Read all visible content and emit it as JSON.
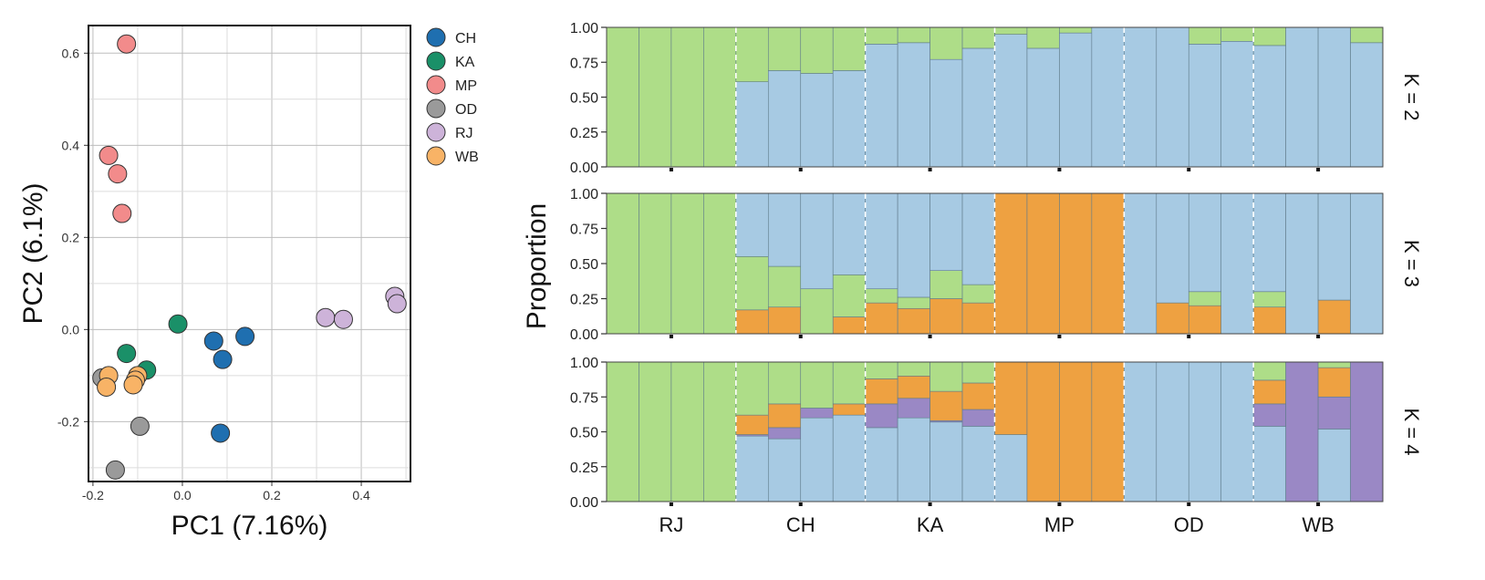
{
  "chart_data": [
    {
      "type": "scatter",
      "xlabel": "PC1 (7.16%)",
      "ylabel": "PC2 (6.1%)",
      "xlim": [
        -0.21,
        0.51
      ],
      "ylim": [
        -0.33,
        0.66
      ],
      "x_ticks": [
        "-0.2",
        "0.0",
        "0.2",
        "0.4"
      ],
      "x_tick_values": [
        -0.2,
        0.0,
        0.2,
        0.4
      ],
      "y_ticks": [
        "-0.2",
        "0.0",
        "0.2",
        "0.4",
        "0.6"
      ],
      "y_tick_values": [
        -0.2,
        0.0,
        0.2,
        0.4,
        0.6
      ],
      "grid": true,
      "legend_position": "outside-right",
      "series": [
        {
          "name": "CH",
          "color": "#1f6fb0",
          "points": [
            [
              0.07,
              -0.025
            ],
            [
              0.14,
              -0.015
            ],
            [
              0.09,
              -0.065
            ],
            [
              0.085,
              -0.225
            ]
          ]
        },
        {
          "name": "KA",
          "color": "#1a9068",
          "points": [
            [
              -0.01,
              0.012
            ],
            [
              -0.125,
              -0.052
            ],
            [
              -0.08,
              -0.088
            ]
          ]
        },
        {
          "name": "MP",
          "color": "#f28b8b",
          "points": [
            [
              -0.125,
              0.62
            ],
            [
              -0.165,
              0.378
            ],
            [
              -0.145,
              0.338
            ],
            [
              -0.135,
              0.252
            ]
          ]
        },
        {
          "name": "OD",
          "color": "#9a9a9a",
          "points": [
            [
              -0.18,
              -0.105
            ],
            [
              -0.095,
              -0.21
            ],
            [
              -0.15,
              -0.305
            ]
          ]
        },
        {
          "name": "RJ",
          "color": "#cdb3d9",
          "points": [
            [
              0.32,
              0.026
            ],
            [
              0.36,
              0.022
            ],
            [
              0.475,
              0.072
            ],
            [
              0.48,
              0.056
            ]
          ]
        },
        {
          "name": "WB",
          "color": "#f8b366",
          "points": [
            [
              -0.165,
              -0.1
            ],
            [
              -0.17,
              -0.125
            ],
            [
              -0.1,
              -0.1
            ],
            [
              -0.105,
              -0.11
            ],
            [
              -0.11,
              -0.12
            ]
          ]
        }
      ]
    },
    {
      "type": "bar",
      "stacked": true,
      "ylabel": "Proportion",
      "ylim": [
        0,
        1
      ],
      "y_ticks": [
        "0.00",
        "0.25",
        "0.50",
        "0.75",
        "1.00"
      ],
      "y_tick_values": [
        0,
        0.25,
        0.5,
        0.75,
        1.0
      ],
      "groups": [
        "RJ",
        "CH",
        "KA",
        "MP",
        "OD",
        "WB"
      ],
      "bars_per_group": 4,
      "component_colors": [
        "#aedd88",
        "#a7cae3",
        "#eea141",
        "#9a88c5"
      ],
      "panels": [
        {
          "label": "K = 2",
          "order": [
            1,
            0
          ],
          "values": [
            [
              1.0,
              0.0
            ],
            [
              1.0,
              0.0
            ],
            [
              1.0,
              0.0
            ],
            [
              1.0,
              0.0
            ],
            [
              0.39,
              0.61
            ],
            [
              0.31,
              0.69
            ],
            [
              0.33,
              0.67
            ],
            [
              0.31,
              0.69
            ],
            [
              0.12,
              0.88
            ],
            [
              0.11,
              0.89
            ],
            [
              0.23,
              0.77
            ],
            [
              0.15,
              0.85
            ],
            [
              0.05,
              0.95
            ],
            [
              0.15,
              0.85
            ],
            [
              0.04,
              0.96
            ],
            [
              0.0,
              1.0
            ],
            [
              0.0,
              1.0
            ],
            [
              0.0,
              1.0
            ],
            [
              0.12,
              0.88
            ],
            [
              0.1,
              0.9
            ],
            [
              0.13,
              0.87
            ],
            [
              0.0,
              1.0
            ],
            [
              0.0,
              1.0
            ],
            [
              0.11,
              0.89
            ]
          ]
        },
        {
          "label": "K = 3",
          "order": [
            2,
            0,
            1
          ],
          "values": [
            [
              1.0,
              0.0,
              0.0
            ],
            [
              1.0,
              0.0,
              0.0
            ],
            [
              1.0,
              0.0,
              0.0
            ],
            [
              1.0,
              0.0,
              0.0
            ],
            [
              0.38,
              0.45,
              0.17
            ],
            [
              0.29,
              0.52,
              0.19
            ],
            [
              0.32,
              0.68,
              0.0
            ],
            [
              0.3,
              0.58,
              0.12
            ],
            [
              0.1,
              0.68,
              0.22
            ],
            [
              0.08,
              0.74,
              0.18
            ],
            [
              0.2,
              0.55,
              0.25
            ],
            [
              0.13,
              0.65,
              0.22
            ],
            [
              0.0,
              0.0,
              1.0
            ],
            [
              0.0,
              0.0,
              1.0
            ],
            [
              0.0,
              0.0,
              1.0
            ],
            [
              0.0,
              0.0,
              1.0
            ],
            [
              0.0,
              1.0,
              0.0
            ],
            [
              0.0,
              0.78,
              0.22
            ],
            [
              0.1,
              0.7,
              0.2
            ],
            [
              0.0,
              1.0,
              0.0
            ],
            [
              0.11,
              0.7,
              0.19
            ],
            [
              0.0,
              1.0,
              0.0
            ],
            [
              0.0,
              0.76,
              0.24
            ],
            [
              0.0,
              1.0,
              0.0
            ]
          ]
        },
        {
          "label": "K = 4",
          "order": [
            1,
            3,
            2,
            0
          ],
          "values": [
            [
              1.0,
              0.0,
              0.0,
              0.0
            ],
            [
              1.0,
              0.0,
              0.0,
              0.0
            ],
            [
              1.0,
              0.0,
              0.0,
              0.0
            ],
            [
              1.0,
              0.0,
              0.0,
              0.0
            ],
            [
              0.38,
              0.47,
              0.14,
              0.01
            ],
            [
              0.3,
              0.45,
              0.17,
              0.08
            ],
            [
              0.33,
              0.6,
              0.0,
              0.07
            ],
            [
              0.3,
              0.62,
              0.08,
              0.0
            ],
            [
              0.12,
              0.53,
              0.18,
              0.17
            ],
            [
              0.1,
              0.6,
              0.16,
              0.14
            ],
            [
              0.21,
              0.57,
              0.21,
              0.01
            ],
            [
              0.15,
              0.54,
              0.19,
              0.12
            ],
            [
              0.0,
              0.48,
              0.52,
              0.0
            ],
            [
              0.0,
              0.0,
              1.0,
              0.0
            ],
            [
              0.0,
              0.0,
              1.0,
              0.0
            ],
            [
              0.0,
              0.0,
              1.0,
              0.0
            ],
            [
              0.0,
              1.0,
              0.0,
              0.0
            ],
            [
              0.0,
              1.0,
              0.0,
              0.0
            ],
            [
              0.0,
              1.0,
              0.0,
              0.0
            ],
            [
              0.0,
              1.0,
              0.0,
              0.0
            ],
            [
              0.13,
              0.54,
              0.17,
              0.16
            ],
            [
              0.0,
              0.0,
              0.0,
              1.0
            ],
            [
              0.04,
              0.52,
              0.21,
              0.23
            ],
            [
              0.0,
              0.0,
              0.0,
              1.0
            ]
          ]
        }
      ]
    }
  ]
}
